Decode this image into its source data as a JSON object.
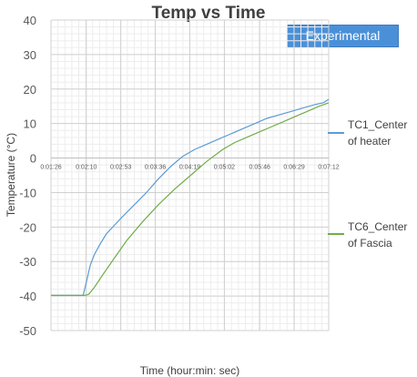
{
  "chart_data": {
    "type": "line",
    "title": "Temp vs Time",
    "badge": "Experimental",
    "xlabel": "Time (hour:min: sec)",
    "ylabel": "Temperature (°C)",
    "ylim": [
      -50,
      40
    ],
    "yticks": [
      40,
      30,
      20,
      10,
      0,
      -10,
      -20,
      -30,
      -40,
      -50
    ],
    "xlim_seconds": [
      86,
      432
    ],
    "xticks": [
      {
        "label": "0:01:26",
        "t": 86
      },
      {
        "label": "0:02:10",
        "t": 130
      },
      {
        "label": "0:02:53",
        "t": 173
      },
      {
        "label": "0:03:36",
        "t": 216
      },
      {
        "label": "0:04:19",
        "t": 259
      },
      {
        "label": "0:05:02",
        "t": 302
      },
      {
        "label": "0:05:46",
        "t": 346
      },
      {
        "label": "0:06:29",
        "t": 389
      },
      {
        "label": "0:07:12",
        "t": 432
      }
    ],
    "grid": true,
    "legend_position": "right",
    "series": [
      {
        "name": "TC1_Center of heater",
        "color": "#5b9bd5",
        "points": [
          [
            86,
            -39.8
          ],
          [
            100,
            -39.8
          ],
          [
            115,
            -39.8
          ],
          [
            126,
            -39.8
          ],
          [
            130,
            -36
          ],
          [
            135,
            -31
          ],
          [
            140,
            -28
          ],
          [
            147,
            -25
          ],
          [
            155,
            -22
          ],
          [
            165,
            -19.5
          ],
          [
            175,
            -17
          ],
          [
            190,
            -13.5
          ],
          [
            205,
            -10
          ],
          [
            220,
            -6
          ],
          [
            235,
            -2.5
          ],
          [
            250,
            0.5
          ],
          [
            265,
            2.5
          ],
          [
            280,
            4
          ],
          [
            295,
            5.5
          ],
          [
            310,
            7
          ],
          [
            325,
            8.5
          ],
          [
            340,
            10
          ],
          [
            355,
            11.5
          ],
          [
            370,
            12.5
          ],
          [
            385,
            13.5
          ],
          [
            400,
            14.5
          ],
          [
            415,
            15.5
          ],
          [
            425,
            16
          ],
          [
            432,
            17
          ]
        ]
      },
      {
        "name": "TC6_Center of Fascia",
        "color": "#70ad47",
        "points": [
          [
            86,
            -39.8
          ],
          [
            100,
            -39.8
          ],
          [
            115,
            -39.8
          ],
          [
            128,
            -39.8
          ],
          [
            133,
            -39.5
          ],
          [
            140,
            -37.5
          ],
          [
            150,
            -34
          ],
          [
            165,
            -29
          ],
          [
            180,
            -24
          ],
          [
            200,
            -18.5
          ],
          [
            220,
            -13.5
          ],
          [
            240,
            -9
          ],
          [
            260,
            -5
          ],
          [
            280,
            -1
          ],
          [
            300,
            2.5
          ],
          [
            315,
            4.5
          ],
          [
            330,
            6
          ],
          [
            345,
            7.5
          ],
          [
            360,
            9
          ],
          [
            375,
            10.5
          ],
          [
            390,
            12
          ],
          [
            405,
            13.5
          ],
          [
            420,
            15
          ],
          [
            432,
            16
          ]
        ]
      }
    ]
  }
}
